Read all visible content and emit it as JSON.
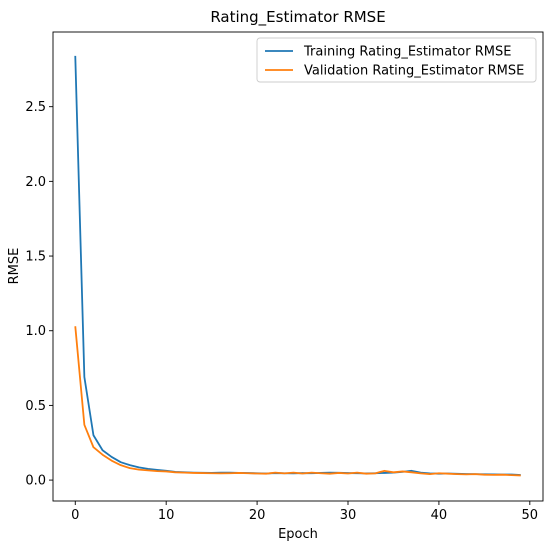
{
  "chart_data": {
    "type": "line",
    "title": "Rating_Estimator RMSE",
    "xlabel": "Epoch",
    "ylabel": "RMSE",
    "xlim": [
      -2.45,
      51.45
    ],
    "ylim": [
      -0.14,
      3.0
    ],
    "xticks": [
      0,
      10,
      20,
      30,
      40,
      50
    ],
    "yticks": [
      0.0,
      0.5,
      1.0,
      1.5,
      2.0,
      2.5
    ],
    "ytick_labels": [
      "0.0",
      "0.5",
      "1.0",
      "1.5",
      "2.0",
      "2.5"
    ],
    "grid": false,
    "legend_position": "top-right",
    "x": [
      0,
      1,
      2,
      3,
      4,
      5,
      6,
      7,
      8,
      9,
      10,
      11,
      12,
      13,
      14,
      15,
      16,
      17,
      18,
      19,
      20,
      21,
      22,
      23,
      24,
      25,
      26,
      27,
      28,
      29,
      30,
      31,
      32,
      33,
      34,
      35,
      36,
      37,
      38,
      39,
      40,
      41,
      42,
      43,
      44,
      45,
      46,
      47,
      48,
      49
    ],
    "series": [
      {
        "name": "Training Rating_Estimator RMSE",
        "color": "#1f77b4",
        "values": [
          2.84,
          0.69,
          0.3,
          0.2,
          0.155,
          0.12,
          0.1,
          0.085,
          0.075,
          0.068,
          0.062,
          0.055,
          0.052,
          0.05,
          0.049,
          0.048,
          0.05,
          0.05,
          0.048,
          0.047,
          0.046,
          0.044,
          0.047,
          0.046,
          0.045,
          0.047,
          0.046,
          0.048,
          0.05,
          0.049,
          0.047,
          0.046,
          0.045,
          0.046,
          0.048,
          0.05,
          0.055,
          0.062,
          0.05,
          0.045,
          0.043,
          0.044,
          0.042,
          0.041,
          0.04,
          0.039,
          0.038,
          0.037,
          0.037,
          0.034
        ]
      },
      {
        "name": "Validation Rating_Estimator RMSE",
        "color": "#ff7f0e",
        "values": [
          1.03,
          0.37,
          0.22,
          0.17,
          0.13,
          0.1,
          0.08,
          0.07,
          0.065,
          0.06,
          0.058,
          0.052,
          0.05,
          0.048,
          0.047,
          0.046,
          0.045,
          0.046,
          0.048,
          0.046,
          0.044,
          0.043,
          0.05,
          0.045,
          0.05,
          0.044,
          0.05,
          0.046,
          0.043,
          0.048,
          0.044,
          0.05,
          0.043,
          0.045,
          0.062,
          0.052,
          0.058,
          0.052,
          0.045,
          0.04,
          0.046,
          0.043,
          0.04,
          0.038,
          0.04,
          0.036,
          0.035,
          0.036,
          0.033,
          0.031
        ]
      }
    ]
  }
}
